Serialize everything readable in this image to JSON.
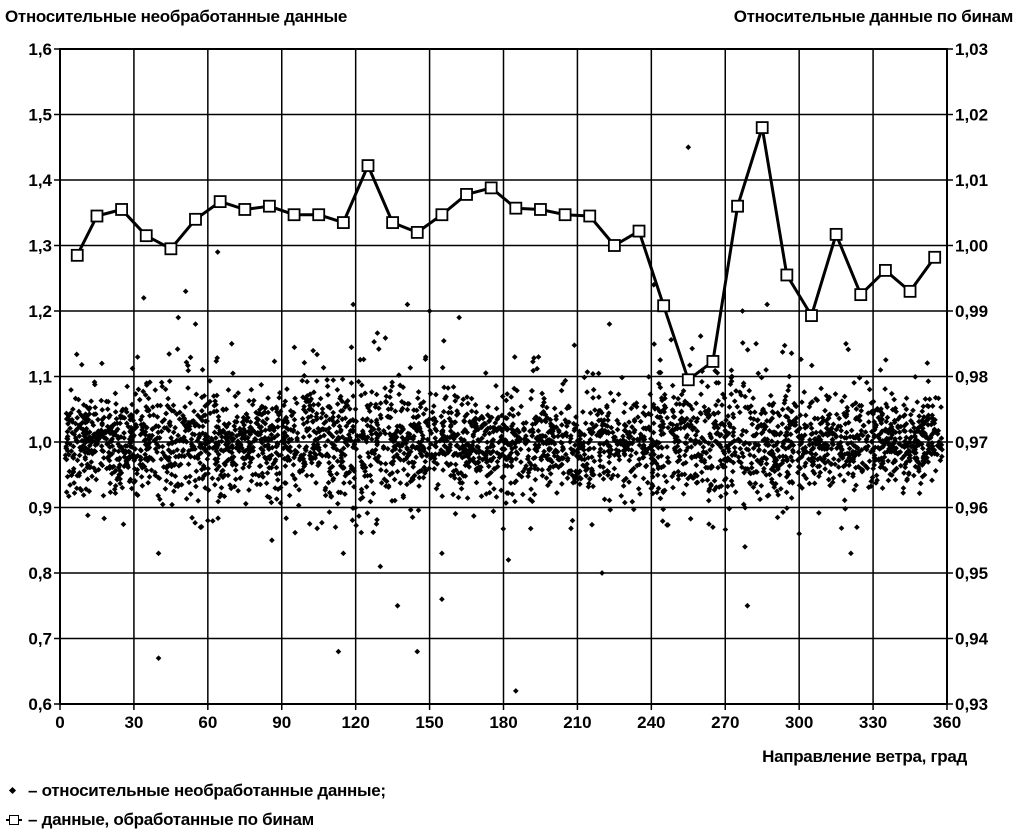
{
  "chart_data": {
    "type": "scatter",
    "title": "",
    "ylabel_left": "Относительные необработанные данные",
    "ylabel_right": "Относительные данные по бинам",
    "xlabel": "Направление ветра, град",
    "xlim": [
      0,
      360
    ],
    "ylim_left": [
      0.6,
      1.6
    ],
    "ylim_right": [
      0.93,
      1.03
    ],
    "xticks": [
      "0",
      "30",
      "60",
      "90",
      "120",
      "150",
      "180",
      "210",
      "240",
      "270",
      "300",
      "330",
      "360"
    ],
    "yticks_left": [
      "0,6",
      "0,7",
      "0,8",
      "0,9",
      "1,0",
      "1,1",
      "1,2",
      "1,3",
      "1,4",
      "1,5",
      "1,6"
    ],
    "yticks_right": [
      "0,93",
      "0,94",
      "0,95",
      "0,96",
      "0,97",
      "0,98",
      "0,99",
      "1,00",
      "1,01",
      "1,02",
      "1,03"
    ],
    "grid": true,
    "series": [
      {
        "name": "– относительные необработанные данные;",
        "type": "scatter",
        "axis": "left",
        "marker": "diamond",
        "note_points": "dense cloud centered at 1.0 with spread ~±0.1, outliers listed below",
        "outliers": [
          {
            "x": 13,
            "y": 1.03
          },
          {
            "x": 17,
            "y": 1.12
          },
          {
            "x": 34,
            "y": 1.22
          },
          {
            "x": 40,
            "y": 0.83
          },
          {
            "x": 40,
            "y": 0.67
          },
          {
            "x": 48,
            "y": 1.19
          },
          {
            "x": 51,
            "y": 1.23
          },
          {
            "x": 55,
            "y": 1.18
          },
          {
            "x": 57,
            "y": 0.87
          },
          {
            "x": 60,
            "y": 0.88
          },
          {
            "x": 64,
            "y": 1.29
          },
          {
            "x": 86,
            "y": 0.85
          },
          {
            "x": 113,
            "y": 0.68
          },
          {
            "x": 115,
            "y": 0.83
          },
          {
            "x": 119,
            "y": 1.21
          },
          {
            "x": 130,
            "y": 0.81
          },
          {
            "x": 137,
            "y": 0.75
          },
          {
            "x": 141,
            "y": 1.21
          },
          {
            "x": 145,
            "y": 0.68
          },
          {
            "x": 150,
            "y": 1.2
          },
          {
            "x": 155,
            "y": 0.83
          },
          {
            "x": 155,
            "y": 0.76
          },
          {
            "x": 162,
            "y": 1.19
          },
          {
            "x": 182,
            "y": 0.82
          },
          {
            "x": 185,
            "y": 0.62
          },
          {
            "x": 208,
            "y": 0.88
          },
          {
            "x": 220,
            "y": 0.8
          },
          {
            "x": 223,
            "y": 1.18
          },
          {
            "x": 241,
            "y": 1.24
          },
          {
            "x": 255,
            "y": 1.45
          },
          {
            "x": 265,
            "y": 0.87
          },
          {
            "x": 277,
            "y": 1.2
          },
          {
            "x": 278,
            "y": 0.84
          },
          {
            "x": 279,
            "y": 0.75
          },
          {
            "x": 287,
            "y": 1.21
          },
          {
            "x": 296,
            "y": 1.1
          },
          {
            "x": 300,
            "y": 0.86
          },
          {
            "x": 319,
            "y": 1.15
          },
          {
            "x": 321,
            "y": 0.83
          },
          {
            "x": 333,
            "y": 1.11
          }
        ]
      },
      {
        "name": "– данные, обработанные по бинам",
        "type": "line",
        "axis": "right",
        "marker": "square",
        "x": [
          7,
          15,
          25,
          35,
          45,
          55,
          65,
          75,
          85,
          95,
          105,
          115,
          125,
          135,
          145,
          155,
          165,
          175,
          185,
          195,
          205,
          215,
          225,
          235,
          245,
          255,
          265,
          275,
          285,
          295,
          305,
          315,
          325,
          335,
          345,
          355
        ],
        "values": [
          0.9985,
          1.0045,
          1.0055,
          1.0015,
          0.9995,
          1.004,
          1.0067,
          1.0055,
          1.006,
          1.0047,
          1.0047,
          1.0035,
          1.0122,
          1.0035,
          1.002,
          1.0047,
          1.0078,
          1.0088,
          1.0057,
          1.0055,
          1.0047,
          1.0045,
          1.0,
          1.0022,
          0.9908,
          0.9795,
          0.9823,
          1.006,
          1.018,
          0.9955,
          0.9893,
          1.0017,
          0.9925,
          0.9962,
          0.993,
          0.9982
        ]
      }
    ]
  }
}
